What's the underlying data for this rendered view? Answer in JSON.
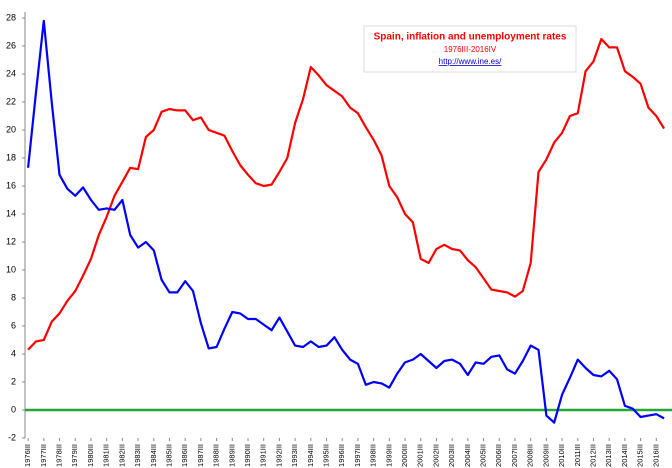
{
  "chart_data": {
    "type": "line",
    "title": "Spain, inflation and unemployment rates",
    "subtitle": "1976III-2016IV",
    "source": "http://www.ine.es/",
    "x": [
      1976.5,
      1977,
      1977.5,
      1978,
      1978.5,
      1979,
      1979.5,
      1980,
      1980.5,
      1981,
      1981.5,
      1982,
      1982.5,
      1983,
      1983.5,
      1984,
      1984.5,
      1985,
      1985.5,
      1986,
      1986.5,
      1987,
      1987.5,
      1988,
      1988.5,
      1989,
      1989.5,
      1990,
      1990.5,
      1991,
      1991.5,
      1992,
      1992.5,
      1993,
      1993.5,
      1994,
      1994.5,
      1995,
      1995.5,
      1996,
      1996.5,
      1997,
      1997.5,
      1998,
      1998.5,
      1999,
      1999.5,
      2000,
      2000.5,
      2001,
      2001.5,
      2002,
      2002.5,
      2003,
      2003.5,
      2004,
      2004.5,
      2005,
      2005.5,
      2006,
      2006.5,
      2007,
      2007.5,
      2008,
      2008.5,
      2009,
      2009.5,
      2010,
      2010.5,
      2011,
      2011.5,
      2012,
      2012.5,
      2013,
      2013.5,
      2014,
      2014.5,
      2015,
      2015.5,
      2016,
      2016.5,
      2017
    ],
    "series": [
      {
        "color": "#ff0000",
        "values": [
          4.3,
          4.9,
          5.0,
          6.3,
          6.9,
          7.8,
          8.5,
          9.6,
          10.8,
          12.5,
          13.8,
          15.3,
          16.3,
          17.3,
          17.2,
          19.5,
          20.0,
          21.3,
          21.5,
          21.4,
          21.4,
          20.7,
          20.9,
          20.0,
          19.8,
          19.6,
          18.5,
          17.5,
          16.8,
          16.2,
          16.0,
          16.1,
          17.0,
          18.0,
          20.5,
          22.2,
          24.5,
          23.9,
          23.2,
          22.8,
          22.4,
          21.6,
          21.2,
          20.2,
          19.3,
          18.2,
          16.0,
          15.2,
          14.0,
          13.4,
          10.8,
          10.5,
          11.5,
          11.8,
          11.5,
          11.4,
          10.7,
          10.2,
          9.4,
          8.6,
          8.5,
          8.4,
          8.1,
          8.5,
          10.5,
          17.0,
          17.9,
          19.1,
          19.8,
          21.0,
          21.2,
          24.2,
          24.9,
          26.5,
          25.9,
          25.9,
          24.2,
          23.8,
          23.3,
          21.6,
          21.0,
          20.1
        ]
      },
      {
        "color": "#0000ff",
        "values": [
          17.3,
          22.7,
          27.8,
          22.0,
          16.8,
          15.8,
          15.3,
          15.9,
          15.0,
          14.3,
          14.4,
          14.3,
          15.0,
          12.5,
          11.6,
          12.0,
          11.4,
          9.3,
          8.4,
          8.4,
          9.2,
          8.5,
          6.2,
          4.4,
          4.5,
          5.8,
          7.0,
          6.9,
          6.5,
          6.5,
          6.1,
          5.7,
          6.6,
          5.6,
          4.6,
          4.5,
          4.9,
          4.5,
          4.6,
          5.2,
          4.3,
          3.6,
          3.3,
          1.8,
          2.0,
          1.9,
          1.6,
          2.6,
          3.4,
          3.6,
          4.0,
          3.5,
          3.0,
          3.5,
          3.6,
          3.3,
          2.5,
          3.4,
          3.3,
          3.8,
          3.9,
          2.9,
          2.6,
          3.5,
          4.6,
          4.3,
          -0.4,
          -0.9,
          1.1,
          2.3,
          3.6,
          3.0,
          2.5,
          2.4,
          2.8,
          2.2,
          0.3,
          0.1,
          -0.5,
          -0.4,
          -0.3,
          -0.6
        ]
      }
    ],
    "reference_line": {
      "value": 0,
      "color": "#22a838"
    },
    "xlim": [
      1976.3,
      2017.5
    ],
    "xticks": [
      {
        "value": 1976.5,
        "label": "1976III"
      },
      {
        "value": 1977.5,
        "label": "1977III"
      },
      {
        "value": 1978.5,
        "label": "1978III"
      },
      {
        "value": 1979.5,
        "label": "1979III"
      },
      {
        "value": 1980.5,
        "label": "1980III"
      },
      {
        "value": 1981.5,
        "label": "1981III"
      },
      {
        "value": 1982.5,
        "label": "1982III"
      },
      {
        "value": 1983.5,
        "label": "1983III"
      },
      {
        "value": 1984.5,
        "label": "1984III"
      },
      {
        "value": 1985.5,
        "label": "1985III"
      },
      {
        "value": 1986.5,
        "label": "1986III"
      },
      {
        "value": 1987.5,
        "label": "1987III"
      },
      {
        "value": 1988.5,
        "label": "1988III"
      },
      {
        "value": 1989.5,
        "label": "1989III"
      },
      {
        "value": 1990.5,
        "label": "1990III"
      },
      {
        "value": 1991.5,
        "label": "1991III"
      },
      {
        "value": 1992.5,
        "label": "1992III"
      },
      {
        "value": 1993.5,
        "label": "1993III"
      },
      {
        "value": 1994.5,
        "label": "1994III"
      },
      {
        "value": 1995.5,
        "label": "1995III"
      },
      {
        "value": 1996.5,
        "label": "1996III"
      },
      {
        "value": 1997.5,
        "label": "1997III"
      },
      {
        "value": 1998.5,
        "label": "1998III"
      },
      {
        "value": 1999.5,
        "label": "1999III"
      },
      {
        "value": 2000.5,
        "label": "2000III"
      },
      {
        "value": 2001.5,
        "label": "2001III"
      },
      {
        "value": 2002.5,
        "label": "2002III"
      },
      {
        "value": 2003.5,
        "label": "2003III"
      },
      {
        "value": 2004.5,
        "label": "2004III"
      },
      {
        "value": 2005.5,
        "label": "2005III"
      },
      {
        "value": 2006.5,
        "label": "2006III"
      },
      {
        "value": 2007.5,
        "label": "2007III"
      },
      {
        "value": 2008.5,
        "label": "2008III"
      },
      {
        "value": 2009.5,
        "label": "2009III"
      },
      {
        "value": 2010.5,
        "label": "2010III"
      },
      {
        "value": 2011.5,
        "label": "2011III"
      },
      {
        "value": 2012.5,
        "label": "2012III"
      },
      {
        "value": 2013.5,
        "label": "2013III"
      },
      {
        "value": 2014.5,
        "label": "2014III"
      },
      {
        "value": 2015.5,
        "label": "2015III"
      },
      {
        "value": 2016.5,
        "label": "2016III"
      }
    ],
    "ylim": [
      -2,
      28
    ],
    "yticks": [
      -2,
      0,
      2,
      4,
      6,
      8,
      10,
      12,
      14,
      16,
      18,
      20,
      22,
      24,
      26,
      28
    ],
    "grid": false
  }
}
